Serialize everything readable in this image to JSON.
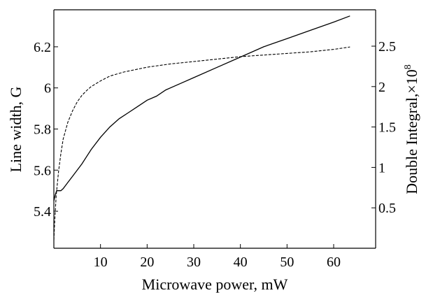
{
  "chart_data": {
    "type": "line",
    "title": "",
    "xlabel": "Microwave power, mW",
    "ylabel": "Line width, G",
    "y2label": "Double Integral,×10",
    "y2label_exponent": "8",
    "xlim": [
      0,
      69
    ],
    "ylim": [
      5.22,
      6.38
    ],
    "y2lim": [
      0.0,
      2.95
    ],
    "xticks": [
      10,
      20,
      30,
      40,
      50,
      60
    ],
    "yticks": [
      5.4,
      5.6,
      5.8,
      6.0,
      6.2
    ],
    "y2ticks": [
      0.5,
      1.0,
      1.5,
      2.0,
      2.5
    ],
    "grid": false,
    "legend": "none",
    "series": [
      {
        "axis": "left",
        "style": "solid",
        "x": [
          0,
          0.3,
          0.6,
          1.0,
          1.5,
          2.0,
          3.0,
          4.0,
          6.0,
          8.0,
          10.0,
          12.0,
          14.0,
          16.0,
          18.0,
          20.0,
          22.0,
          24.0,
          27.0,
          30.0,
          35.0,
          40.0,
          45.0,
          50.0,
          55.0,
          60.0,
          63.5
        ],
        "y": [
          5.45,
          5.48,
          5.5,
          5.5,
          5.5,
          5.51,
          5.54,
          5.57,
          5.63,
          5.7,
          5.76,
          5.81,
          5.85,
          5.88,
          5.91,
          5.94,
          5.96,
          5.99,
          6.02,
          6.05,
          6.1,
          6.15,
          6.2,
          6.24,
          6.28,
          6.32,
          6.35
        ]
      },
      {
        "axis": "right",
        "style": "dashed",
        "x": [
          0,
          0.2,
          0.5,
          1.0,
          1.5,
          2.0,
          3.0,
          4.0,
          5.0,
          6.0,
          7.0,
          8.0,
          10.0,
          12.0,
          15.0,
          20.0,
          25.0,
          30.0,
          35.0,
          40.0,
          45.0,
          50.0,
          55.0,
          60.0,
          63.5
        ],
        "y": [
          0.1,
          0.35,
          0.65,
          0.95,
          1.17,
          1.35,
          1.56,
          1.7,
          1.81,
          1.89,
          1.95,
          2.0,
          2.07,
          2.13,
          2.18,
          2.24,
          2.28,
          2.31,
          2.34,
          2.37,
          2.39,
          2.41,
          2.43,
          2.46,
          2.49
        ]
      }
    ]
  }
}
